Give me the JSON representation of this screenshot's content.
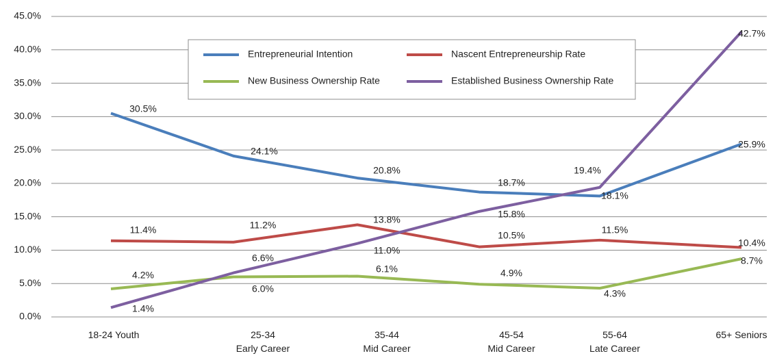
{
  "chart_data": {
    "type": "line",
    "categories": [
      "18-24 Youth",
      "25-34\nEarly Career",
      "35-44\nMid Career",
      "45-54\nMid Career",
      "55-64\nLate Career",
      "65+ Seniors"
    ],
    "series": [
      {
        "name": "Entrepreneurial Intention",
        "color": "#4a7ebb",
        "values": [
          30.5,
          24.1,
          20.8,
          18.7,
          18.1,
          25.9
        ],
        "value_labels": [
          "30.5%",
          "24.1%",
          "20.8%",
          "18.7%",
          "18.1%",
          "25.9%"
        ]
      },
      {
        "name": "Nascent Entrepreneurship Rate",
        "color": "#be4b48",
        "values": [
          11.4,
          11.2,
          13.8,
          10.5,
          11.5,
          10.4
        ],
        "value_labels": [
          "11.4%",
          "11.2%",
          "13.8%",
          "10.5%",
          "11.5%",
          "10.4%"
        ]
      },
      {
        "name": "New Business Ownership Rate",
        "color": "#98b954",
        "values": [
          4.2,
          6.0,
          6.1,
          4.9,
          4.3,
          8.7
        ],
        "value_labels": [
          "4.2%",
          "6.0%",
          "6.1%",
          "4.9%",
          "4.3%",
          "8.7%"
        ]
      },
      {
        "name": "Established Business Ownership Rate",
        "color": "#7d5fa0",
        "values": [
          1.4,
          6.6,
          11.0,
          15.8,
          19.4,
          42.7
        ],
        "value_labels": [
          "1.4%",
          "6.6%",
          "11.0%",
          "15.8%",
          "19.4%",
          "42.7%"
        ]
      }
    ],
    "ylim": [
      0,
      45
    ],
    "yticks": [
      {
        "value": 0,
        "label": "0.0%"
      },
      {
        "value": 5,
        "label": "5.0%"
      },
      {
        "value": 10,
        "label": "10.0%"
      },
      {
        "value": 15,
        "label": "15.0%"
      },
      {
        "value": 20,
        "label": "20.0%"
      },
      {
        "value": 25,
        "label": "25.0%"
      },
      {
        "value": 30,
        "label": "30.0%"
      },
      {
        "value": 35,
        "label": "35.0%"
      },
      {
        "value": 40,
        "label": "40.0%"
      },
      {
        "value": 45,
        "label": "45.0%"
      }
    ],
    "grid": true,
    "legend": "top"
  }
}
